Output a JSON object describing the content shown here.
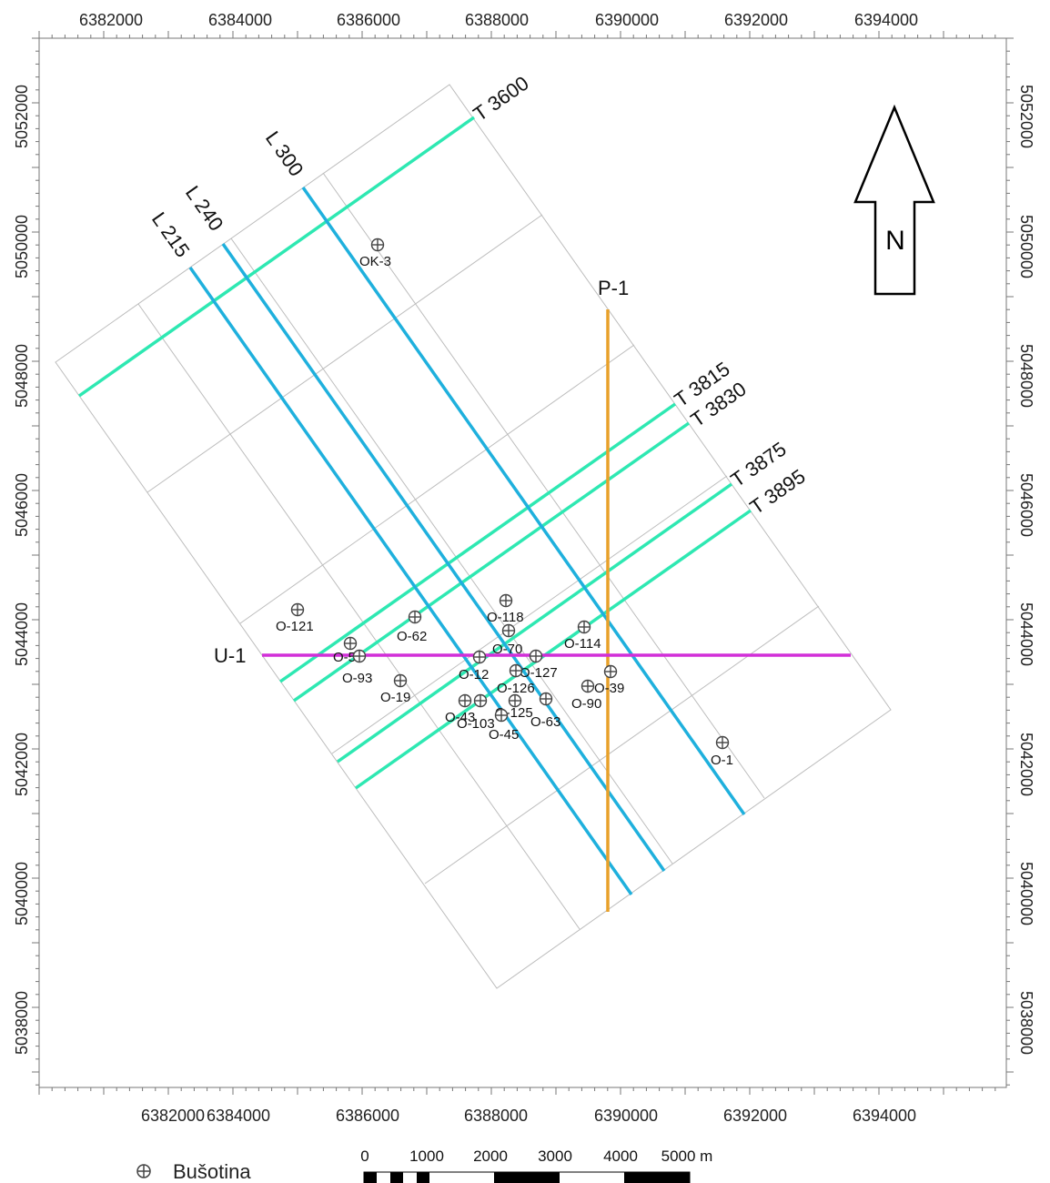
{
  "map": {
    "top_axis_ticks": [
      "6382000",
      "6384000",
      "6386000",
      "6388000",
      "6390000",
      "6392000",
      "6394000"
    ],
    "bottom_axis_ticks": [
      "6382000",
      "6384000",
      "6386000",
      "6388000",
      "6390000",
      "6392000",
      "6394000"
    ],
    "left_axis_ticks": [
      "5052000",
      "5050000",
      "5048000",
      "5046000",
      "5044000",
      "5042000",
      "5040000",
      "5038000"
    ],
    "right_axis_ticks": [
      "5052000",
      "5050000",
      "5048000",
      "5046000",
      "5044000",
      "5042000",
      "5040000",
      "5038000"
    ],
    "north_label": "N",
    "profiles": [
      {
        "name": "T 3600",
        "kind": "transverse",
        "color": "#2ee8b2"
      },
      {
        "name": "T 3815",
        "kind": "transverse",
        "color": "#2ee8b2"
      },
      {
        "name": "T 3830",
        "kind": "transverse",
        "color": "#2ee8b2"
      },
      {
        "name": "T 3875",
        "kind": "transverse",
        "color": "#2ee8b2"
      },
      {
        "name": "T 3895",
        "kind": "transverse",
        "color": "#2ee8b2"
      },
      {
        "name": "L 215",
        "kind": "longitudinal",
        "color": "#1fb0dd"
      },
      {
        "name": "L 240",
        "kind": "longitudinal",
        "color": "#1fb0dd"
      },
      {
        "name": "L 300",
        "kind": "longitudinal",
        "color": "#1fb0dd"
      },
      {
        "name": "P-1",
        "kind": "meridional",
        "color": "#e8a12a"
      },
      {
        "name": "U-1",
        "kind": "latitudinal",
        "color": "#d22fd8"
      }
    ],
    "wells": [
      "OK-3",
      "O-121",
      "O-62",
      "O-118",
      "O-114",
      "O-70",
      "O-57",
      "O-93",
      "O-19",
      "O-12",
      "O-127",
      "O-126",
      "O-39",
      "O-90",
      "O-43",
      "O-103",
      "O-125",
      "O-63",
      "O-45",
      "O-1"
    ],
    "legend": {
      "symbol": "⊕",
      "label": "Bušotina"
    },
    "scale_bar": {
      "ticks": [
        "0",
        "1000",
        "2000",
        "3000",
        "4000",
        "5000 m"
      ]
    }
  }
}
